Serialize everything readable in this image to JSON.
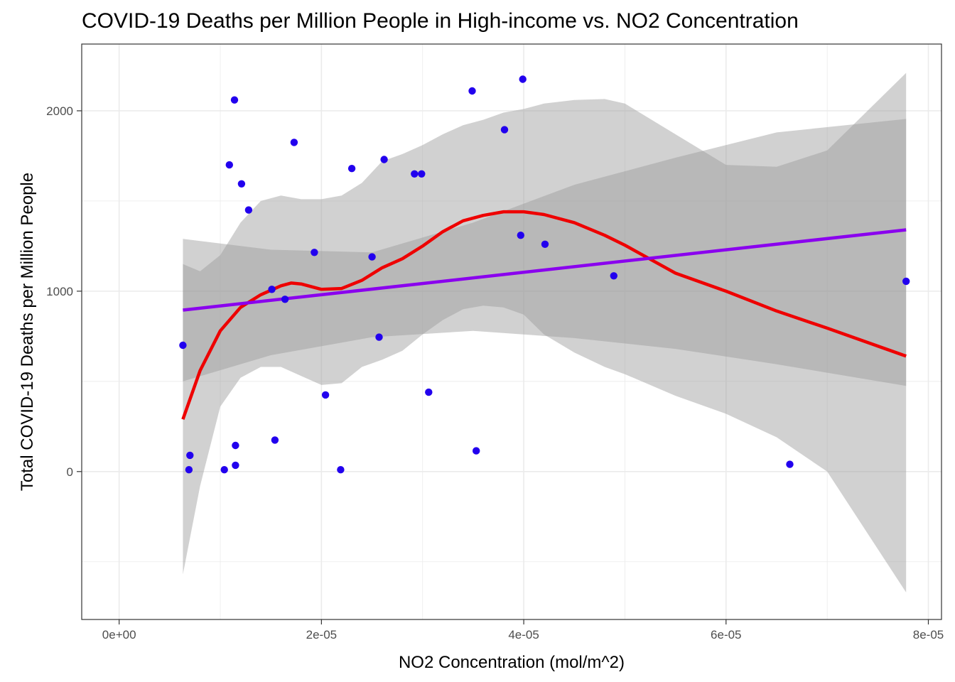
{
  "chart_data": {
    "type": "scatter",
    "title": "COVID-19 Deaths per Million People in High-income vs. NO2 Concentration",
    "xlabel": "NO2 Concentration (mol/m^2)",
    "ylabel": "Total COVID-19 Deaths per Million People",
    "xlim": [
      -3.7e-06,
      8.13e-05
    ],
    "ylim": [
      -820,
      2370
    ],
    "x_ticks": [
      0,
      2e-05,
      4e-05,
      6e-05,
      8e-05
    ],
    "x_tick_labels": [
      "0e+00",
      "2e-05",
      "4e-05",
      "6e-05",
      "8e-05"
    ],
    "y_ticks": [
      0,
      1000,
      2000
    ],
    "y_tick_labels": [
      "0",
      "1000",
      "2000"
    ],
    "grid": true,
    "colors": {
      "points": "#2200ee",
      "linear_fit": "#8a00ee",
      "loess_fit": "#ee0000",
      "band": "#999999",
      "grid": "#ebebeb",
      "panel_border": "#333333"
    },
    "points": [
      {
        "x": 6.3e-06,
        "y": 700
      },
      {
        "x": 6.9e-06,
        "y": 10
      },
      {
        "x": 7e-06,
        "y": 90
      },
      {
        "x": 1.04e-05,
        "y": 10
      },
      {
        "x": 1.09e-05,
        "y": 1700
      },
      {
        "x": 1.14e-05,
        "y": 2060
      },
      {
        "x": 1.15e-05,
        "y": 35
      },
      {
        "x": 1.15e-05,
        "y": 145
      },
      {
        "x": 1.21e-05,
        "y": 1595
      },
      {
        "x": 1.28e-05,
        "y": 1450
      },
      {
        "x": 1.51e-05,
        "y": 1010
      },
      {
        "x": 1.54e-05,
        "y": 175
      },
      {
        "x": 1.64e-05,
        "y": 955
      },
      {
        "x": 1.73e-05,
        "y": 1825
      },
      {
        "x": 1.93e-05,
        "y": 1215
      },
      {
        "x": 2.04e-05,
        "y": 425
      },
      {
        "x": 2.19e-05,
        "y": 10
      },
      {
        "x": 2.3e-05,
        "y": 1680
      },
      {
        "x": 2.5e-05,
        "y": 1190
      },
      {
        "x": 2.57e-05,
        "y": 745
      },
      {
        "x": 2.62e-05,
        "y": 1730
      },
      {
        "x": 2.92e-05,
        "y": 1650
      },
      {
        "x": 2.99e-05,
        "y": 1650
      },
      {
        "x": 3.06e-05,
        "y": 440
      },
      {
        "x": 3.49e-05,
        "y": 2110
      },
      {
        "x": 3.53e-05,
        "y": 115
      },
      {
        "x": 3.81e-05,
        "y": 1895
      },
      {
        "x": 3.97e-05,
        "y": 1310
      },
      {
        "x": 3.99e-05,
        "y": 2175
      },
      {
        "x": 4.21e-05,
        "y": 1260
      },
      {
        "x": 4.89e-05,
        "y": 1085
      },
      {
        "x": 6.63e-05,
        "y": 40
      },
      {
        "x": 7.78e-05,
        "y": 1055
      }
    ],
    "linear_fit": {
      "line": [
        [
          6.3e-06,
          895
        ],
        [
          7.78e-05,
          1340
        ]
      ],
      "band": [
        {
          "x": 6.3e-06,
          "lo": 500,
          "hi": 1290
        },
        {
          "x": 1.5e-05,
          "lo": 645,
          "hi": 1230
        },
        {
          "x": 2.5e-05,
          "lo": 745,
          "hi": 1215
        },
        {
          "x": 3.5e-05,
          "lo": 780,
          "hi": 1380
        },
        {
          "x": 4.5e-05,
          "lo": 740,
          "hi": 1590
        },
        {
          "x": 5.5e-05,
          "lo": 680,
          "hi": 1740
        },
        {
          "x": 6.5e-05,
          "lo": 595,
          "hi": 1880
        },
        {
          "x": 7.78e-05,
          "lo": 475,
          "hi": 1955
        }
      ]
    },
    "loess_fit": {
      "line": [
        [
          6.3e-06,
          290
        ],
        [
          8e-06,
          560
        ],
        [
          1e-05,
          780
        ],
        [
          1.2e-05,
          910
        ],
        [
          1.4e-05,
          980
        ],
        [
          1.6e-05,
          1030
        ],
        [
          1.7e-05,
          1045
        ],
        [
          1.8e-05,
          1040
        ],
        [
          2e-05,
          1010
        ],
        [
          2.2e-05,
          1015
        ],
        [
          2.4e-05,
          1060
        ],
        [
          2.6e-05,
          1130
        ],
        [
          2.8e-05,
          1180
        ],
        [
          3e-05,
          1250
        ],
        [
          3.2e-05,
          1330
        ],
        [
          3.4e-05,
          1390
        ],
        [
          3.6e-05,
          1420
        ],
        [
          3.8e-05,
          1440
        ],
        [
          4e-05,
          1440
        ],
        [
          4.2e-05,
          1425
        ],
        [
          4.5e-05,
          1380
        ],
        [
          4.8e-05,
          1310
        ],
        [
          5e-05,
          1255
        ],
        [
          5.5e-05,
          1100
        ],
        [
          6e-05,
          1000
        ],
        [
          6.5e-05,
          890
        ],
        [
          7e-05,
          795
        ],
        [
          7.78e-05,
          640
        ]
      ],
      "band": [
        {
          "x": 6.3e-06,
          "lo": -570,
          "hi": 1150
        },
        {
          "x": 8e-06,
          "lo": -80,
          "hi": 1110
        },
        {
          "x": 1e-05,
          "lo": 360,
          "hi": 1200
        },
        {
          "x": 1.2e-05,
          "lo": 520,
          "hi": 1380
        },
        {
          "x": 1.4e-05,
          "lo": 580,
          "hi": 1500
        },
        {
          "x": 1.6e-05,
          "lo": 580,
          "hi": 1530
        },
        {
          "x": 1.8e-05,
          "lo": 530,
          "hi": 1510
        },
        {
          "x": 2e-05,
          "lo": 480,
          "hi": 1510
        },
        {
          "x": 2.2e-05,
          "lo": 490,
          "hi": 1530
        },
        {
          "x": 2.4e-05,
          "lo": 580,
          "hi": 1600
        },
        {
          "x": 2.6e-05,
          "lo": 620,
          "hi": 1720
        },
        {
          "x": 2.8e-05,
          "lo": 670,
          "hi": 1760
        },
        {
          "x": 3e-05,
          "lo": 760,
          "hi": 1810
        },
        {
          "x": 3.2e-05,
          "lo": 840,
          "hi": 1870
        },
        {
          "x": 3.4e-05,
          "lo": 900,
          "hi": 1920
        },
        {
          "x": 3.6e-05,
          "lo": 920,
          "hi": 1950
        },
        {
          "x": 3.8e-05,
          "lo": 910,
          "hi": 1990
        },
        {
          "x": 4e-05,
          "lo": 870,
          "hi": 2010
        },
        {
          "x": 4.2e-05,
          "lo": 760,
          "hi": 2040
        },
        {
          "x": 4.5e-05,
          "lo": 660,
          "hi": 2060
        },
        {
          "x": 4.8e-05,
          "lo": 580,
          "hi": 2065
        },
        {
          "x": 5e-05,
          "lo": 540,
          "hi": 2040
        },
        {
          "x": 5.5e-05,
          "lo": 420,
          "hi": 1870
        },
        {
          "x": 6e-05,
          "lo": 320,
          "hi": 1700
        },
        {
          "x": 6.5e-05,
          "lo": 190,
          "hi": 1690
        },
        {
          "x": 7e-05,
          "lo": 0,
          "hi": 1780
        },
        {
          "x": 7.78e-05,
          "lo": -670,
          "hi": 2210
        }
      ]
    }
  }
}
